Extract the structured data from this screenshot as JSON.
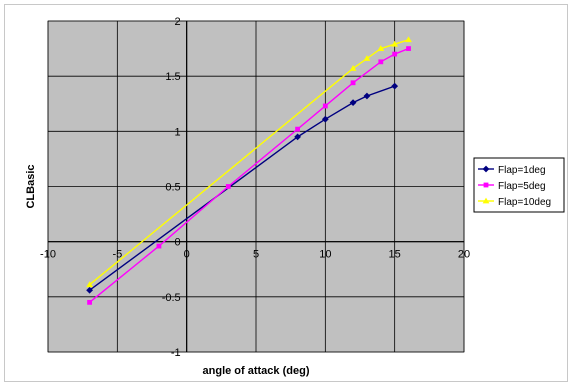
{
  "chart_data": {
    "type": "line",
    "title": "",
    "xlabel": "angle of attack (deg)",
    "ylabel": "CLBasic",
    "xlim": [
      -10,
      20
    ],
    "ylim": [
      -1,
      2
    ],
    "x_ticks": [
      -10,
      -5,
      0,
      5,
      10,
      15,
      20
    ],
    "y_ticks": [
      -1,
      -0.5,
      0,
      0.5,
      1,
      1.5,
      2
    ],
    "grid": true,
    "plot_background": "#c0c0c0",
    "legend_position": "right",
    "series": [
      {
        "name": "Flap=1deg",
        "color": "#000080",
        "marker": "diamond",
        "x": [
          -7,
          8,
          10,
          12,
          13,
          15
        ],
        "y": [
          -0.44,
          0.95,
          1.11,
          1.26,
          1.32,
          1.41
        ]
      },
      {
        "name": "Flap=5deg",
        "color": "#ff00ff",
        "marker": "square",
        "x": [
          -7,
          -2,
          3,
          8,
          10,
          12,
          14,
          15,
          16
        ],
        "y": [
          -0.55,
          -0.04,
          0.5,
          1.02,
          1.23,
          1.44,
          1.63,
          1.7,
          1.75
        ]
      },
      {
        "name": "Flap=10deg",
        "color": "#ffff00",
        "marker": "triangle",
        "x": [
          -7,
          12,
          13,
          14,
          15,
          16
        ],
        "y": [
          -0.39,
          1.57,
          1.66,
          1.75,
          1.79,
          1.83
        ]
      }
    ]
  }
}
